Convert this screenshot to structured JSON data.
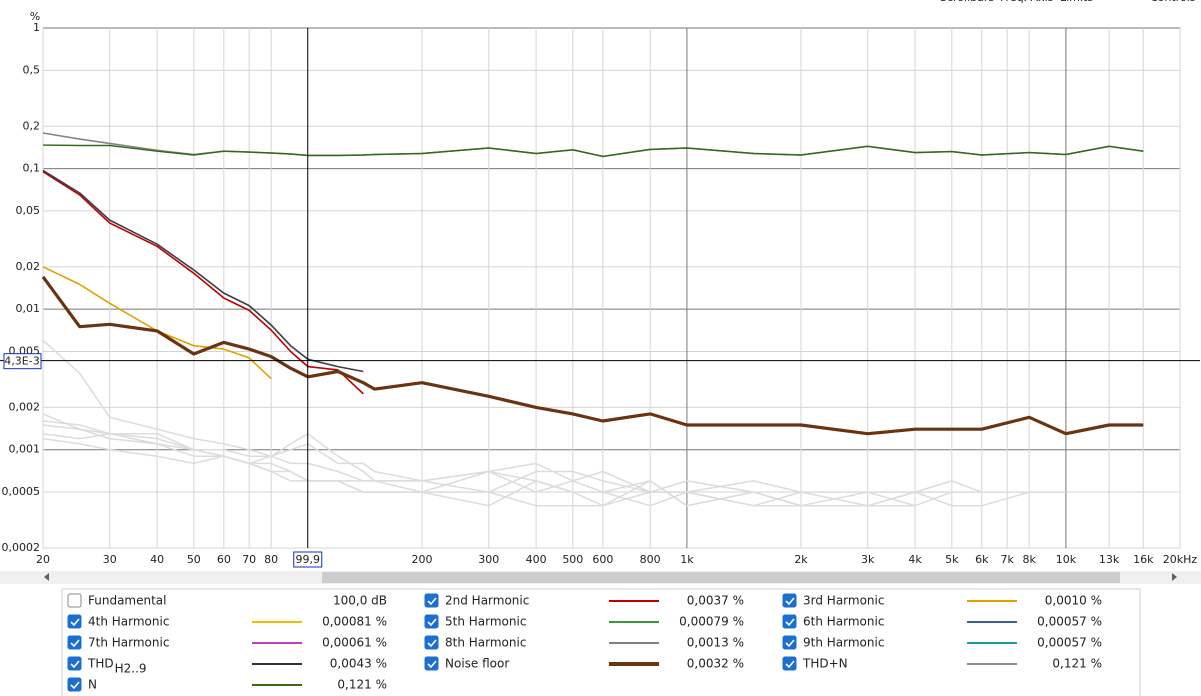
{
  "chart_data": {
    "type": "line",
    "y_unit": "%",
    "toolbar": [
      "Scrollbars",
      "Freq. Axis",
      "Limits",
      "Controls"
    ],
    "xscale": "log",
    "yscale": "log",
    "grid": true,
    "xlim": [
      20,
      20000
    ],
    "ylim": [
      0.0002,
      1
    ],
    "xticks": [
      20,
      30,
      40,
      50,
      60,
      70,
      80,
      200,
      300,
      400,
      500,
      600,
      800,
      {
        "value": 1000,
        "label": "1k"
      },
      {
        "value": 2000,
        "label": "2k"
      },
      {
        "value": 3000,
        "label": "3k"
      },
      {
        "value": 4000,
        "label": "4k"
      },
      {
        "value": 5000,
        "label": "5k"
      },
      {
        "value": 6000,
        "label": "6k"
      },
      {
        "value": 7000,
        "label": "7k"
      },
      {
        "value": 8000,
        "label": "8k"
      },
      {
        "value": 10000,
        "label": "10k"
      },
      {
        "value": 13000,
        "label": "13k"
      },
      {
        "value": 16000,
        "label": "16k"
      },
      {
        "value": 20000,
        "label": "20kHz"
      }
    ],
    "yticks": [
      1,
      {
        "value": 0.5,
        "label": "0,5"
      },
      {
        "value": 0.2,
        "label": "0,2"
      },
      {
        "value": 0.1,
        "label": "0,1"
      },
      {
        "value": 0.05,
        "label": "0,05"
      },
      {
        "value": 0.02,
        "label": "0,02"
      },
      {
        "value": 0.01,
        "label": "0,01"
      },
      {
        "value": 0.005,
        "label": "0,005"
      },
      {
        "value": 0.002,
        "label": "0,002"
      },
      {
        "value": 0.001,
        "label": "0,001"
      },
      {
        "value": 0.0005,
        "label": "0,0005"
      },
      {
        "value": 0.0002,
        "label": "0,0002"
      }
    ],
    "cursor": {
      "x": {
        "value": 99.9,
        "label": "99,9"
      },
      "y": {
        "value": 0.0043,
        "label": "4,3E-3"
      }
    },
    "x": [
      20,
      25,
      30,
      40,
      50,
      60,
      70,
      80,
      90,
      100,
      120,
      140,
      150,
      200,
      300,
      400,
      500,
      600,
      800,
      1000,
      1500,
      2000,
      3000,
      4000,
      5000,
      6000,
      8000,
      10000,
      13000,
      16000
    ],
    "series": [
      {
        "name": "Fundamental",
        "checked": false,
        "text_color": "#8b4513",
        "value_label": "100,0 dB"
      },
      {
        "name": "2nd Harmonic",
        "checked": true,
        "color": "#c00000",
        "text_color": "#c00000",
        "value_label": "0,0037 %",
        "plot_color": "#c00000",
        "width": 1.6,
        "values": [
          0.095,
          0.065,
          0.041,
          0.028,
          0.018,
          0.012,
          0.0098,
          0.0071,
          0.005,
          0.0039,
          0.0037,
          0.0025,
          null,
          null,
          null,
          null,
          null,
          null,
          null,
          null,
          null,
          null,
          null,
          null,
          null,
          null,
          null,
          null,
          null,
          null
        ]
      },
      {
        "name": "3rd Harmonic",
        "checked": true,
        "color": "#e0a000",
        "text_color": "#d89000",
        "value_label": "0,0010 %",
        "plot_color": "#e0a000",
        "width": 1.6,
        "values": [
          0.02,
          0.015,
          0.011,
          0.007,
          0.0055,
          0.0052,
          0.0045,
          0.0032,
          null,
          null,
          null,
          null,
          null,
          null,
          null,
          null,
          null,
          null,
          null,
          null,
          null,
          null,
          null,
          null,
          null,
          null,
          null,
          null,
          null,
          null
        ]
      },
      {
        "name": "4th Harmonic",
        "checked": true,
        "color": "#e8c000",
        "text_color": "#d8b000",
        "value_label": "0,00081 %",
        "plot_color": "#dcdcdc",
        "width": 1.5,
        "values": [
          0.006,
          0.0035,
          0.0017,
          0.0014,
          0.0012,
          0.0011,
          0.001,
          0.0009,
          0.0011,
          0.0013,
          0.0009,
          0.0007,
          0.0006,
          0.0006,
          0.0007,
          0.0006,
          0.0005,
          0.0005,
          0.0006,
          0.0004,
          0.0005,
          0.0004,
          0.0005,
          0.0004,
          null,
          null,
          null,
          null,
          null,
          null
        ]
      },
      {
        "name": "5th Harmonic",
        "checked": true,
        "color": "#3a9a3a",
        "text_color": "#2e8b2e",
        "value_label": "0,00079 %",
        "plot_color": "#dcdcdc",
        "width": 1.5,
        "values": [
          0.0018,
          0.0014,
          0.0012,
          0.0011,
          0.0009,
          0.0009,
          0.0008,
          0.0008,
          0.0007,
          0.0006,
          0.0006,
          0.0006,
          0.0006,
          0.0005,
          0.0007,
          0.0005,
          0.0006,
          0.0007,
          0.0005,
          0.0006,
          0.0005,
          0.0004,
          0.0004,
          0.0005,
          0.0005,
          0.0005,
          0.0005,
          0.0005,
          null,
          null
        ]
      },
      {
        "name": "6th Harmonic",
        "checked": true,
        "color": "#3a5fa0",
        "text_color": "#2f5597",
        "value_label": "0,00057 %",
        "plot_color": "#dcdcdc",
        "width": 1.5,
        "values": [
          0.0013,
          0.0012,
          0.0013,
          0.0013,
          0.001,
          0.0009,
          0.0008,
          0.0007,
          0.0007,
          0.0006,
          0.0006,
          0.0005,
          0.0005,
          0.0005,
          0.0004,
          0.0006,
          0.0005,
          0.0004,
          0.0006,
          0.0004,
          0.0005,
          0.0004,
          0.0004,
          null,
          null,
          null,
          null,
          null,
          null,
          null
        ]
      },
      {
        "name": "7th Harmonic",
        "checked": true,
        "color": "#c040c0",
        "text_color": "#b030b0",
        "value_label": "0,00061 %",
        "plot_color": "#dcdcdc",
        "width": 1.5,
        "values": [
          0.0015,
          0.0014,
          0.0013,
          0.0011,
          0.001,
          0.0009,
          0.0008,
          0.0009,
          0.001,
          0.0011,
          0.0008,
          0.0008,
          0.0007,
          0.0006,
          0.0007,
          0.0008,
          0.0006,
          0.0005,
          0.0004,
          0.0005,
          0.0006,
          0.0005,
          0.0005,
          0.0005,
          0.0006,
          0.0005,
          null,
          null,
          null,
          null
        ]
      },
      {
        "name": "8th Harmonic",
        "checked": true,
        "color": "#808080",
        "text_color": "#666666",
        "value_label": "0,0013 %",
        "plot_color": "#dcdcdc",
        "width": 1.5,
        "values": [
          0.0016,
          0.0015,
          0.0013,
          0.0012,
          0.001,
          0.001,
          0.0009,
          0.0009,
          0.0008,
          0.0008,
          0.0007,
          0.0006,
          0.0006,
          0.0006,
          0.0005,
          0.0007,
          0.0007,
          0.0006,
          0.0005,
          0.0005,
          0.0004,
          0.0004,
          0.0004,
          0.0004,
          0.0005,
          null,
          null,
          null,
          null,
          null
        ]
      },
      {
        "name": "9th Harmonic",
        "checked": true,
        "color": "#1a9a9a",
        "text_color": "#138a8a",
        "value_label": "0,00057 %",
        "plot_color": "#dcdcdc",
        "width": 1.5,
        "values": [
          0.0012,
          0.0011,
          0.001,
          0.0009,
          0.0008,
          0.0009,
          0.0008,
          0.0007,
          0.0006,
          0.0006,
          0.0006,
          0.0005,
          0.0005,
          0.0005,
          0.0005,
          0.0004,
          0.0004,
          0.0004,
          0.0005,
          0.0005,
          0.0004,
          0.0005,
          0.0004,
          0.0005,
          0.0004,
          0.0004,
          0.0005,
          null,
          null,
          null
        ]
      },
      {
        "name": "THD",
        "sub": "H2..9",
        "checked": true,
        "color": "#333333",
        "text_color": "#222222",
        "value_label": "0,0043 %",
        "plot_color": "#3c3c48",
        "width": 1.6,
        "values": [
          0.097,
          0.067,
          0.043,
          0.029,
          0.019,
          0.013,
          0.0106,
          0.0077,
          0.0055,
          0.0044,
          0.0039,
          0.0036,
          null,
          null,
          null,
          null,
          null,
          null,
          null,
          null,
          null,
          null,
          null,
          null,
          null,
          null,
          null,
          null,
          null,
          null
        ]
      },
      {
        "name": "Noise floor",
        "checked": true,
        "color": "#6b3410",
        "text_color": "#333333",
        "value_label": "0,0032 %",
        "plot_color": "#6b3410",
        "width": 3.2,
        "values": [
          0.017,
          0.0075,
          0.0078,
          0.007,
          0.0048,
          0.0058,
          0.0052,
          0.0046,
          0.0038,
          0.0033,
          0.0036,
          0.003,
          0.0027,
          0.003,
          0.0024,
          0.002,
          0.0018,
          0.0016,
          0.0018,
          0.0015,
          0.0015,
          0.0015,
          0.0013,
          0.0014,
          0.0014,
          0.0014,
          0.0017,
          0.0013,
          0.0015,
          0.0015
        ]
      },
      {
        "name": "THD+N",
        "checked": true,
        "color": "#909090",
        "text_color": "#808080",
        "value_label": "0,121 %",
        "plot_color": "#858585",
        "width": 1.6,
        "values": [
          0.179,
          0.162,
          0.151,
          0.135,
          0.126,
          0.133,
          0.131,
          0.129,
          0.127,
          0.124,
          0.124,
          0.125,
          0.126,
          0.128,
          0.14,
          0.128,
          0.136,
          0.122,
          0.137,
          0.14,
          0.128,
          0.125,
          0.144,
          0.13,
          0.132,
          0.125,
          0.13,
          0.126,
          0.144,
          0.133
        ]
      },
      {
        "name": "N",
        "checked": true,
        "color": "#3a6a10",
        "text_color": "#2e7d10",
        "value_label": "0,121 %",
        "plot_color": "#2f6a1a",
        "width": 1.4,
        "values": [
          0.147,
          0.146,
          0.146,
          0.133,
          0.125,
          0.133,
          0.131,
          0.129,
          0.127,
          0.124,
          0.124,
          0.125,
          0.126,
          0.128,
          0.14,
          0.128,
          0.136,
          0.122,
          0.137,
          0.14,
          0.128,
          0.125,
          0.144,
          0.13,
          0.132,
          0.125,
          0.13,
          0.126,
          0.144,
          0.133
        ]
      }
    ]
  }
}
